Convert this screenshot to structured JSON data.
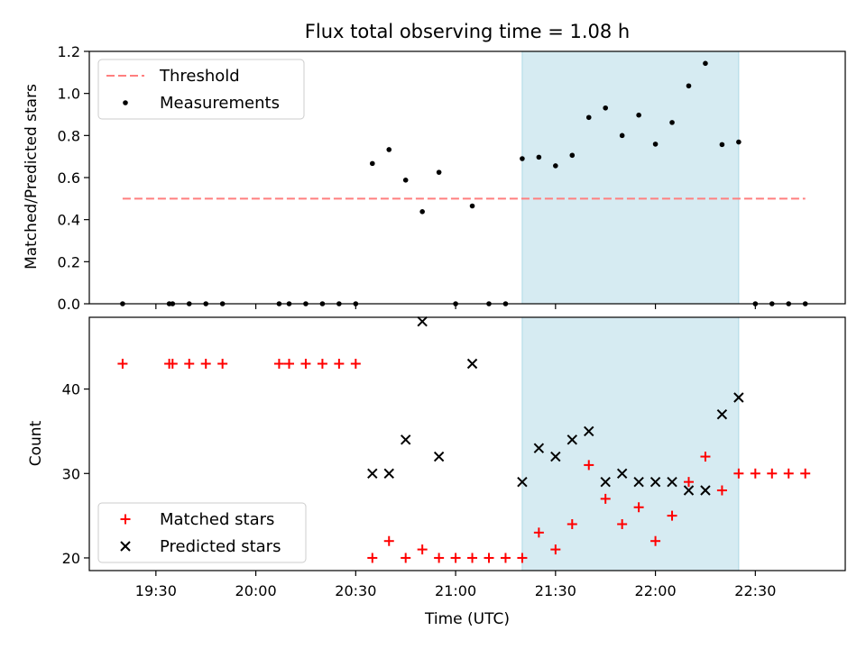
{
  "chart_data": [
    {
      "type": "scatter",
      "title": "Flux total observing time = 1.08 h",
      "xlabel": "",
      "ylabel": "Matched/Predicted stars",
      "ylim": [
        0.0,
        1.2
      ],
      "yticks": [
        "0.0",
        "0.2",
        "0.4",
        "0.6",
        "0.8",
        "1.0",
        "1.2"
      ],
      "xlim": [
        "19:10",
        "22:57"
      ],
      "xticks": [
        "19:30",
        "20:00",
        "20:30",
        "21:00",
        "21:30",
        "22:00",
        "22:30"
      ],
      "shaded_span": [
        "21:20",
        "22:25"
      ],
      "shaded_color": "#add8e6",
      "legend_position": "upper-left",
      "series": [
        {
          "name": "Threshold",
          "style": "dashed-line",
          "color": "#ff7f7f",
          "x": [
            "19:20",
            "22:45"
          ],
          "y": [
            0.5,
            0.5
          ]
        },
        {
          "name": "Measurements",
          "style": "dot",
          "color": "#000000",
          "x": [
            "19:20",
            "19:34",
            "19:35",
            "19:40",
            "19:45",
            "19:50",
            "20:07",
            "20:10",
            "20:15",
            "20:20",
            "20:25",
            "20:30",
            "20:35",
            "20:40",
            "20:45",
            "20:50",
            "20:55",
            "21:00",
            "21:05",
            "21:10",
            "21:15",
            "21:20",
            "21:25",
            "21:30",
            "21:35",
            "21:40",
            "21:45",
            "21:50",
            "21:55",
            "22:00",
            "22:05",
            "22:10",
            "22:15",
            "22:20",
            "22:25",
            "22:30",
            "22:35",
            "22:40",
            "22:45"
          ],
          "y": [
            0,
            0,
            0,
            0,
            0,
            0,
            0,
            0,
            0,
            0,
            0,
            0,
            0.667,
            0.733,
            0.588,
            0.438,
            0.625,
            0,
            0.465,
            0,
            0,
            0.69,
            0.697,
            0.656,
            0.706,
            0.886,
            0.931,
            0.8,
            0.897,
            0.759,
            0.862,
            1.036,
            1.143,
            0.757,
            0.769,
            0,
            0,
            0,
            0
          ]
        }
      ]
    },
    {
      "type": "scatter",
      "title": "",
      "xlabel": "Time (UTC)",
      "ylabel": "Count",
      "ylim": [
        18.5,
        48.5
      ],
      "yticks": [
        "20",
        "30",
        "40"
      ],
      "xlim": [
        "19:10",
        "22:57"
      ],
      "xticks": [
        "19:30",
        "20:00",
        "20:30",
        "21:00",
        "21:30",
        "22:00",
        "22:30"
      ],
      "shaded_span": [
        "21:20",
        "22:25"
      ],
      "shaded_color": "#add8e6",
      "legend_position": "lower-left",
      "series": [
        {
          "name": "Matched stars",
          "style": "plus",
          "color": "#ff0000",
          "x": [
            "19:20",
            "19:34",
            "19:35",
            "19:40",
            "19:45",
            "19:50",
            "20:07",
            "20:10",
            "20:15",
            "20:20",
            "20:25",
            "20:30",
            "20:35",
            "20:40",
            "20:45",
            "20:50",
            "20:55",
            "21:00",
            "21:05",
            "21:10",
            "21:15",
            "21:20",
            "21:25",
            "21:30",
            "21:35",
            "21:40",
            "21:45",
            "21:50",
            "21:55",
            "22:00",
            "22:05",
            "22:10",
            "22:15",
            "22:20",
            "22:25",
            "22:30",
            "22:35",
            "22:40",
            "22:45"
          ],
          "y": [
            43,
            43,
            43,
            43,
            43,
            43,
            43,
            43,
            43,
            43,
            43,
            43,
            20,
            22,
            20,
            21,
            20,
            20,
            20,
            20,
            20,
            20,
            23,
            21,
            24,
            31,
            27,
            24,
            26,
            22,
            25,
            29,
            32,
            28,
            30,
            30,
            30,
            30,
            30
          ]
        },
        {
          "name": "Predicted stars",
          "style": "x",
          "color": "#000000",
          "x": [
            "20:35",
            "20:40",
            "20:45",
            "20:50",
            "20:55",
            "21:05",
            "21:20",
            "21:25",
            "21:30",
            "21:35",
            "21:40",
            "21:45",
            "21:50",
            "21:55",
            "22:00",
            "22:05",
            "22:10",
            "22:15",
            "22:20",
            "22:25"
          ],
          "y": [
            30,
            30,
            34,
            48,
            32,
            43,
            29,
            33,
            32,
            34,
            35,
            29,
            30,
            29,
            29,
            29,
            28,
            28,
            37,
            39
          ]
        }
      ]
    }
  ]
}
